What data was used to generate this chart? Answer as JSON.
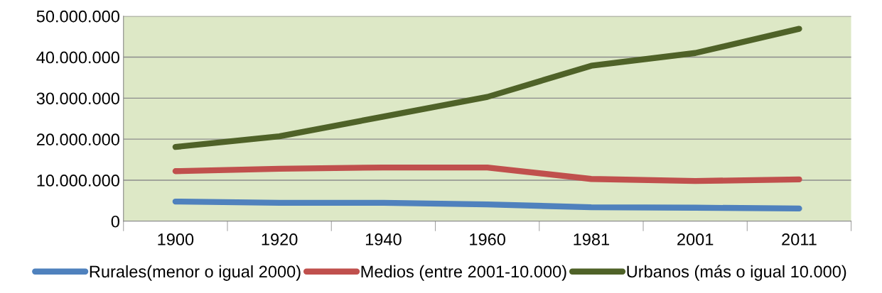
{
  "chart_data": {
    "type": "line",
    "categories": [
      "1900",
      "1920",
      "1940",
      "1960",
      "1981",
      "2001",
      "2011"
    ],
    "series": [
      {
        "name": "Rurales(menor o igual 2000)",
        "color": "#4f81bd",
        "values": [
          4800000,
          4500000,
          4500000,
          4100000,
          3400000,
          3300000,
          3100000
        ]
      },
      {
        "name": "Medios (entre 2001-10.000)",
        "color": "#c0504d",
        "values": [
          12200000,
          12800000,
          13100000,
          13100000,
          10300000,
          9800000,
          10200000
        ]
      },
      {
        "name": "Urbanos (más o igual 10.000)",
        "color": "#4f6228",
        "values": [
          18100000,
          20700000,
          25500000,
          30300000,
          37900000,
          41000000,
          46900000
        ]
      }
    ],
    "ylim": [
      0,
      50000000
    ],
    "yticks": [
      {
        "value": 0,
        "label": "0"
      },
      {
        "value": 10000000,
        "label": "10.000.000"
      },
      {
        "value": 20000000,
        "label": "20.000.000"
      },
      {
        "value": 30000000,
        "label": "30.000.000"
      },
      {
        "value": 40000000,
        "label": "40.000.000"
      },
      {
        "value": 50000000,
        "label": "50.000.000"
      }
    ],
    "grid": "y",
    "legend": "bottom",
    "marker": "none",
    "line_style": "solid"
  }
}
